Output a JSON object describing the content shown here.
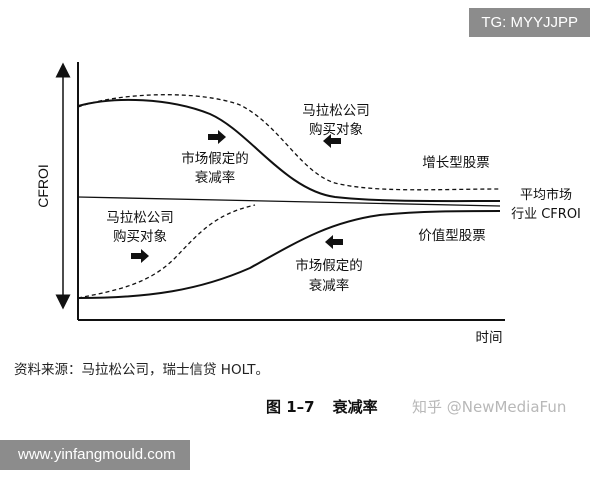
{
  "watermark_tag": "TG: MYYJJPP",
  "watermark_url": "www.yinfangmould.com",
  "zhihu_watermark": "知乎 @NewMediaFun",
  "axes": {
    "y_label": "CFROI",
    "x_label": "时间"
  },
  "labels": {
    "buy_top_line1": "马拉松公司",
    "buy_top_line2": "购买对象",
    "fade_top_line1": "市场假定的",
    "fade_top_line2": "衰减率",
    "growth_stock": "增长型股票",
    "market_avg_line1": "平均市场",
    "market_avg_line2": "行业 CFROI",
    "buy_bottom_line1": "马拉松公司",
    "buy_bottom_line2": "购买对象",
    "value_stock": "价值型股票",
    "fade_bottom_line1": "市场假定的",
    "fade_bottom_line2": "衰减率"
  },
  "source_note": "资料来源：马拉松公司，瑞士信贷 HOLT。",
  "caption": {
    "figure_no": "图 1–7",
    "title": "衰减率"
  },
  "colors": {
    "ink": "#111111",
    "watermark_bg": "#8c8c8c",
    "zhihu_text": "#b8b8b8"
  }
}
